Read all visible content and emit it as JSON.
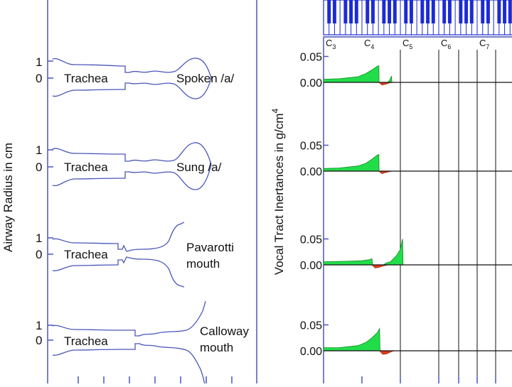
{
  "colors": {
    "outline": "#4a56b8",
    "piano": "#1c2bd6",
    "positive": "#22dd4a",
    "negative": "#e23b1b",
    "text": "#111111"
  },
  "left_panel": {
    "ylabel": "Airway Radius in cm",
    "tick_one": "1",
    "tick_zero": "0",
    "profiles": [
      {
        "section": "Trachea",
        "label_lines": [
          "Spoken /a/"
        ]
      },
      {
        "section": "Trachea",
        "label_lines": [
          "Sung /a/"
        ]
      },
      {
        "section": "Trachea",
        "label_lines": [
          "Pavarotti",
          "mouth"
        ]
      },
      {
        "section": "Trachea",
        "label_lines": [
          "Calloway",
          "mouth"
        ]
      }
    ]
  },
  "right_panel": {
    "ylabel": "Vocal Tract Inertances in g/cm",
    "ylabel_superscript": "4",
    "note_labels": [
      {
        "letter": "C",
        "sub": "3"
      },
      {
        "letter": "C",
        "sub": "4"
      },
      {
        "letter": "C",
        "sub": "5"
      },
      {
        "letter": "C",
        "sub": "6"
      },
      {
        "letter": "C",
        "sub": "7"
      }
    ]
  },
  "chart_data": {
    "type": "area",
    "ylabel": "Vocal Tract Inertances in g/cm4",
    "ylim": [
      -0.02,
      0.06
    ],
    "y_ticks": [
      "0.05",
      "0.00"
    ],
    "x_tick_labels": [
      "C3",
      "C4",
      "C5",
      "C6",
      "C7"
    ],
    "x_axis_scale": "log (musical pitch)",
    "panels": [
      {
        "profile": "Spoken /a/",
        "positive": [
          [
            0,
            0.006
          ],
          [
            0.2,
            0.007
          ],
          [
            0.45,
            0.011
          ],
          [
            0.55,
            0.017
          ],
          [
            0.63,
            0.024
          ],
          [
            0.7,
            0.031
          ],
          [
            0.72,
            0.032
          ],
          [
            0.723,
            0.0
          ]
        ],
        "negative": [
          [
            0.72,
            0.0
          ],
          [
            0.76,
            -0.005
          ],
          [
            0.8,
            -0.004
          ],
          [
            0.86,
            -0.001
          ],
          [
            0.9,
            0.0
          ]
        ],
        "extra_positive": [
          [
            0.835,
            0.0
          ],
          [
            0.86,
            0.004
          ],
          [
            0.885,
            0.012
          ],
          [
            0.89,
            0.0
          ]
        ]
      },
      {
        "profile": "Sung /a/",
        "positive": [
          [
            0,
            0.005
          ],
          [
            0.2,
            0.006
          ],
          [
            0.45,
            0.01
          ],
          [
            0.55,
            0.015
          ],
          [
            0.63,
            0.023
          ],
          [
            0.7,
            0.031
          ],
          [
            0.72,
            0.032
          ],
          [
            0.723,
            0.0
          ]
        ],
        "negative": [
          [
            0.72,
            0.0
          ],
          [
            0.76,
            -0.005
          ],
          [
            0.8,
            -0.003
          ],
          [
            0.86,
            -0.001
          ],
          [
            0.9,
            0.0
          ]
        ]
      },
      {
        "profile": "Pavarotti mouth",
        "positive": [
          [
            0,
            0.006
          ],
          [
            0.3,
            0.007
          ],
          [
            0.5,
            0.008
          ],
          [
            0.6,
            0.01
          ],
          [
            0.63,
            0.012
          ],
          [
            0.64,
            0.0
          ]
        ],
        "negative": [
          [
            0.63,
            0.0
          ],
          [
            0.67,
            -0.006
          ],
          [
            0.72,
            -0.005
          ],
          [
            0.78,
            -0.002
          ],
          [
            0.85,
            0.0
          ]
        ],
        "extra_positive": [
          [
            0.78,
            0.0
          ],
          [
            0.82,
            0.004
          ],
          [
            0.87,
            0.006
          ],
          [
            0.95,
            0.018
          ],
          [
            1.0,
            0.03
          ],
          [
            1.02,
            0.045
          ],
          [
            1.03,
            0.05
          ],
          [
            1.035,
            0.0
          ]
        ]
      },
      {
        "profile": "Calloway mouth",
        "positive": [
          [
            0,
            0.006
          ],
          [
            0.2,
            0.006
          ],
          [
            0.45,
            0.01
          ],
          [
            0.55,
            0.016
          ],
          [
            0.63,
            0.025
          ],
          [
            0.7,
            0.035
          ],
          [
            0.73,
            0.043
          ],
          [
            0.735,
            0.0
          ]
        ],
        "negative": [
          [
            0.73,
            0.0
          ],
          [
            0.77,
            -0.007
          ],
          [
            0.82,
            -0.006
          ],
          [
            0.88,
            -0.002
          ],
          [
            0.92,
            0.0
          ]
        ]
      }
    ]
  }
}
